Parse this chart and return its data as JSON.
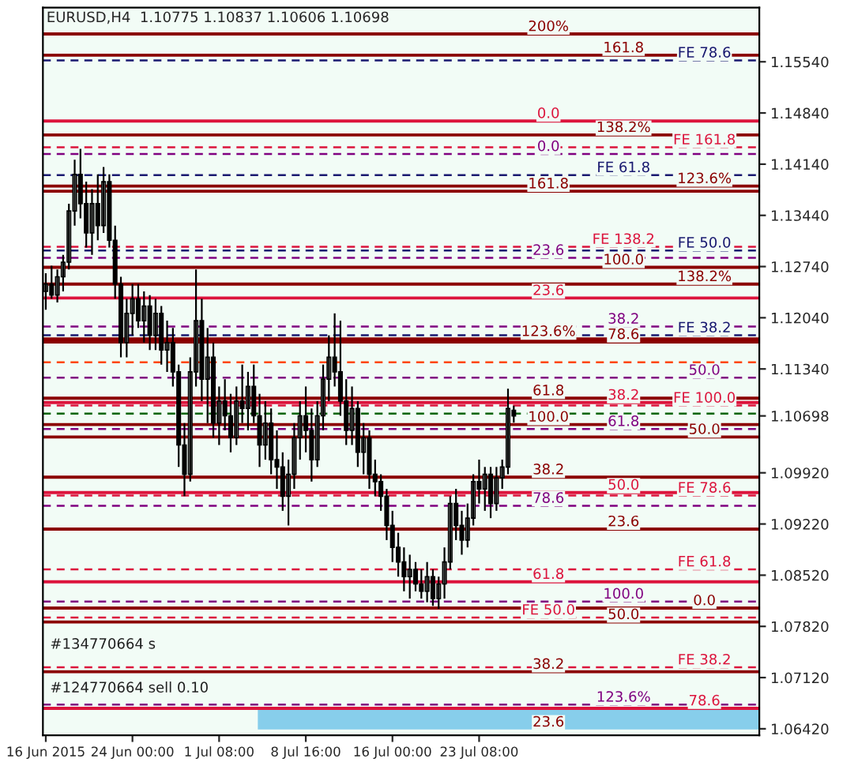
{
  "chart_data": {
    "type": "candlestick",
    "title": "EURUSD,H4  1.10775 1.10837 1.10606 1.10698",
    "color": "#000000",
    "categories": [
      "16 Jun 2015",
      null,
      null,
      null,
      null,
      null,
      null,
      null,
      null,
      null,
      null,
      null,
      null,
      null,
      null,
      "24 Jun 00:00",
      null,
      null,
      null,
      null,
      null,
      null,
      null,
      null,
      null,
      null,
      null,
      null,
      null,
      null,
      "1 Jul 08:00",
      null,
      null,
      null,
      null,
      null,
      null,
      null,
      null,
      null,
      null,
      null,
      null,
      null,
      null,
      "8 Jul 16:00",
      null,
      null,
      null,
      null,
      null,
      null,
      null,
      null,
      null,
      null,
      null,
      null,
      null,
      null,
      "16 Jul 00:00",
      null,
      null,
      null,
      null,
      null,
      null,
      null,
      null,
      null,
      null,
      null,
      null,
      null,
      null,
      "23 Jul 08:00",
      null,
      null,
      null,
      null,
      null,
      null,
      null,
      null,
      null,
      null,
      null,
      null,
      null,
      null,
      null,
      null,
      null,
      null,
      null,
      null,
      null,
      null,
      null,
      null,
      null,
      null,
      null,
      null,
      null,
      null,
      null,
      null,
      null,
      null,
      null,
      null,
      null,
      null,
      null,
      null,
      null,
      null,
      null,
      null,
      null,
      null,
      null,
      null
    ],
    "ohlc": [
      [
        1.124,
        1.1265,
        1.1215,
        1.125
      ],
      [
        1.125,
        1.1275,
        1.123,
        1.1235
      ],
      [
        1.1235,
        1.127,
        1.1225,
        1.126
      ],
      [
        1.126,
        1.129,
        1.124,
        1.128
      ],
      [
        1.128,
        1.136,
        1.127,
        1.135
      ],
      [
        1.135,
        1.142,
        1.133,
        1.14
      ],
      [
        1.14,
        1.1435,
        1.134,
        1.136
      ],
      [
        1.136,
        1.139,
        1.13,
        1.132
      ],
      [
        1.132,
        1.138,
        1.129,
        1.136
      ],
      [
        1.136,
        1.14,
        1.131,
        1.133
      ],
      [
        1.133,
        1.141,
        1.132,
        1.139
      ],
      [
        1.139,
        1.14,
        1.13,
        1.131
      ],
      [
        1.131,
        1.133,
        1.123,
        1.125
      ],
      [
        1.125,
        1.126,
        1.115,
        1.117
      ],
      [
        1.117,
        1.123,
        1.115,
        1.121
      ],
      [
        1.121,
        1.125,
        1.118,
        1.123
      ],
      [
        1.123,
        1.125,
        1.119,
        1.12
      ],
      [
        1.12,
        1.124,
        1.117,
        1.122
      ],
      [
        1.122,
        1.1235,
        1.116,
        1.118
      ],
      [
        1.118,
        1.123,
        1.116,
        1.121
      ],
      [
        1.121,
        1.122,
        1.114,
        1.116
      ],
      [
        1.116,
        1.12,
        1.113,
        1.117
      ],
      [
        1.117,
        1.119,
        1.111,
        1.113
      ],
      [
        1.113,
        1.114,
        1.1,
        1.103
      ],
      [
        1.103,
        1.106,
        1.096,
        1.099
      ],
      [
        1.099,
        1.115,
        1.098,
        1.113
      ],
      [
        1.113,
        1.127,
        1.111,
        1.12
      ],
      [
        1.12,
        1.123,
        1.109,
        1.112
      ],
      [
        1.112,
        1.119,
        1.106,
        1.115
      ],
      [
        1.115,
        1.117,
        1.104,
        1.106
      ],
      [
        1.106,
        1.111,
        1.103,
        1.109
      ],
      [
        1.109,
        1.112,
        1.105,
        1.107
      ],
      [
        1.107,
        1.11,
        1.102,
        1.104
      ],
      [
        1.104,
        1.111,
        1.103,
        1.109
      ],
      [
        1.109,
        1.114,
        1.106,
        1.108
      ],
      [
        1.108,
        1.113,
        1.105,
        1.111
      ],
      [
        1.111,
        1.114,
        1.106,
        1.107
      ],
      [
        1.107,
        1.11,
        1.1,
        1.103
      ],
      [
        1.103,
        1.109,
        1.101,
        1.106
      ],
      [
        1.106,
        1.108,
        1.099,
        1.101
      ],
      [
        1.101,
        1.105,
        1.097,
        1.1
      ],
      [
        1.1,
        1.102,
        1.094,
        1.096
      ],
      [
        1.096,
        1.101,
        1.092,
        1.099
      ],
      [
        1.099,
        1.106,
        1.097,
        1.104
      ],
      [
        1.104,
        1.109,
        1.101,
        1.107
      ],
      [
        1.107,
        1.111,
        1.102,
        1.105
      ],
      [
        1.105,
        1.108,
        1.098,
        1.101
      ],
      [
        1.101,
        1.109,
        1.1,
        1.107
      ],
      [
        1.107,
        1.114,
        1.105,
        1.112
      ],
      [
        1.112,
        1.118,
        1.109,
        1.115
      ],
      [
        1.115,
        1.121,
        1.111,
        1.113
      ],
      [
        1.113,
        1.12,
        1.107,
        1.109
      ],
      [
        1.109,
        1.112,
        1.103,
        1.105
      ],
      [
        1.105,
        1.111,
        1.103,
        1.108
      ],
      [
        1.108,
        1.109,
        1.1,
        1.102
      ],
      [
        1.102,
        1.106,
        1.099,
        1.104
      ],
      [
        1.104,
        1.105,
        1.097,
        1.099
      ],
      [
        1.099,
        1.101,
        1.096,
        1.098
      ],
      [
        1.098,
        1.099,
        1.094,
        1.096
      ],
      [
        1.096,
        1.097,
        1.09,
        1.092
      ],
      [
        1.092,
        1.094,
        1.087,
        1.089
      ],
      [
        1.089,
        1.091,
        1.085,
        1.087
      ],
      [
        1.087,
        1.089,
        1.083,
        1.085
      ],
      [
        1.085,
        1.088,
        1.082,
        1.086
      ],
      [
        1.086,
        1.087,
        1.083,
        1.084
      ],
      [
        1.084,
        1.086,
        1.082,
        1.083
      ],
      [
        1.083,
        1.087,
        1.0815,
        1.085
      ],
      [
        1.085,
        1.086,
        1.081,
        1.082
      ],
      [
        1.082,
        1.085,
        1.0806,
        1.084
      ],
      [
        1.084,
        1.089,
        1.082,
        1.087
      ],
      [
        1.087,
        1.096,
        1.086,
        1.095
      ],
      [
        1.095,
        1.097,
        1.09,
        1.092
      ],
      [
        1.092,
        1.094,
        1.088,
        1.09
      ],
      [
        1.09,
        1.095,
        1.089,
        1.093
      ],
      [
        1.093,
        1.099,
        1.092,
        1.098
      ],
      [
        1.098,
        1.101,
        1.095,
        1.097
      ],
      [
        1.097,
        1.1,
        1.094,
        1.099
      ],
      [
        1.099,
        1.1,
        1.093,
        1.095
      ],
      [
        1.095,
        1.1,
        1.094,
        1.0985
      ],
      [
        1.0985,
        1.101,
        1.097,
        1.1
      ],
      [
        1.1,
        1.1107,
        1.099,
        1.108
      ],
      [
        1.10775,
        1.10837,
        1.10606,
        1.10698
      ],
      null,
      null,
      null,
      null,
      null,
      null,
      null,
      null,
      null,
      null,
      null,
      null,
      null,
      null,
      null,
      null,
      null,
      null,
      null,
      null,
      null,
      null,
      null,
      null,
      null,
      null,
      null,
      null,
      null,
      null,
      null,
      null,
      null,
      null,
      null,
      null,
      null,
      null,
      null,
      null,
      null,
      null
    ],
    "ylim": [
      1.0633,
      1.1628
    ],
    "yticks": [
      {
        "value": 1.1554,
        "label": "1.15540"
      },
      {
        "value": 1.1484,
        "label": "1.14840"
      },
      {
        "value": 1.1414,
        "label": "1.14140"
      },
      {
        "value": 1.1344,
        "label": "1.13440"
      },
      {
        "value": 1.1274,
        "label": "1.12740"
      },
      {
        "value": 1.1204,
        "label": "1.12040"
      },
      {
        "value": 1.1134,
        "label": "1.11340"
      },
      {
        "value": 1.10698,
        "label": "1.10698"
      },
      {
        "value": 1.0992,
        "label": "1.09920"
      },
      {
        "value": 1.0922,
        "label": "1.09220"
      },
      {
        "value": 1.0852,
        "label": "1.08520"
      },
      {
        "value": 1.0782,
        "label": "1.07820"
      },
      {
        "value": 1.0712,
        "label": "1.07120"
      },
      {
        "value": 1.0642,
        "label": "1.06420"
      }
    ],
    "grid": false,
    "ref_lines": [
      {
        "axis": "y",
        "value": 1.1592,
        "color": "#8b0000",
        "line_style": "solid"
      },
      {
        "axis": "y",
        "value": 1.1563,
        "color": "#8b0000",
        "line_style": "solid"
      },
      {
        "axis": "y",
        "value": 1.1556,
        "color": "#191970",
        "line_style": "dashed"
      },
      {
        "axis": "y",
        "value": 1.1473,
        "color": "#dc143c",
        "line_style": "solid"
      },
      {
        "axis": "y",
        "value": 1.1454,
        "color": "#8b0000",
        "line_style": "solid"
      },
      {
        "axis": "y",
        "value": 1.1437,
        "color": "#dc143c",
        "line_style": "dashed"
      },
      {
        "axis": "y",
        "value": 1.1428,
        "color": "#800080",
        "line_style": "dashed"
      },
      {
        "axis": "y",
        "value": 1.1399,
        "color": "#191970",
        "line_style": "dashed"
      },
      {
        "axis": "y",
        "value": 1.1384,
        "color": "#8b0000",
        "line_style": "solid"
      },
      {
        "axis": "y",
        "value": 1.1377,
        "color": "#8b0000",
        "line_style": "solid"
      },
      {
        "axis": "y",
        "value": 1.1301,
        "color": "#dc143c",
        "line_style": "dashed"
      },
      {
        "axis": "y",
        "value": 1.1296,
        "color": "#191970",
        "line_style": "dashed"
      },
      {
        "axis": "y",
        "value": 1.1286,
        "color": "#800080",
        "line_style": "dashed"
      },
      {
        "axis": "y",
        "value": 1.1273,
        "color": "#8b0000",
        "line_style": "solid"
      },
      {
        "axis": "y",
        "value": 1.125,
        "color": "#8b0000",
        "line_style": "solid"
      },
      {
        "axis": "y",
        "value": 1.1231,
        "color": "#dc143c",
        "line_style": "solid"
      },
      {
        "axis": "y",
        "value": 1.1192,
        "color": "#800080",
        "line_style": "dashed"
      },
      {
        "axis": "y",
        "value": 1.118,
        "color": "#191970",
        "line_style": "dashed"
      },
      {
        "axis": "y",
        "value": 1.1175,
        "color": "#8b0000",
        "line_style": "solid"
      },
      {
        "axis": "y",
        "value": 1.1171,
        "color": "#8b0000",
        "line_style": "solid"
      },
      {
        "axis": "y",
        "value": 1.1143,
        "color": "#ff4500",
        "line_style": "dashed"
      },
      {
        "axis": "y",
        "value": 1.1122,
        "color": "#800080",
        "line_style": "dashed"
      },
      {
        "axis": "y",
        "value": 1.1094,
        "color": "#8b0000",
        "line_style": "solid"
      },
      {
        "axis": "y",
        "value": 1.1088,
        "color": "#dc143c",
        "line_style": "solid"
      },
      {
        "axis": "y",
        "value": 1.1084,
        "color": "#dc143c",
        "line_style": "dashed"
      },
      {
        "axis": "y",
        "value": 1.1073,
        "color": "#006400",
        "line_style": "dashed"
      },
      {
        "axis": "y",
        "value": 1.1058,
        "color": "#8b0000",
        "line_style": "solid"
      },
      {
        "axis": "y",
        "value": 1.1052,
        "color": "#800080",
        "line_style": "dashed"
      },
      {
        "axis": "y",
        "value": 1.1041,
        "color": "#8b0000",
        "line_style": "solid"
      },
      {
        "axis": "y",
        "value": 1.0986,
        "color": "#8b0000",
        "line_style": "solid"
      },
      {
        "axis": "y",
        "value": 1.0965,
        "color": "#dc143c",
        "line_style": "solid"
      },
      {
        "axis": "y",
        "value": 1.0961,
        "color": "#dc143c",
        "line_style": "dashed"
      },
      {
        "axis": "y",
        "value": 1.0947,
        "color": "#800080",
        "line_style": "dashed"
      },
      {
        "axis": "y",
        "value": 1.0915,
        "color": "#8b0000",
        "line_style": "solid"
      },
      {
        "axis": "y",
        "value": 1.086,
        "color": "#dc143c",
        "line_style": "dashed"
      },
      {
        "axis": "y",
        "value": 1.0843,
        "color": "#dc143c",
        "line_style": "solid"
      },
      {
        "axis": "y",
        "value": 1.0816,
        "color": "#800080",
        "line_style": "dashed"
      },
      {
        "axis": "y",
        "value": 1.0807,
        "color": "#8b0000",
        "line_style": "solid"
      },
      {
        "axis": "y",
        "value": 1.0794,
        "color": "#dc143c",
        "line_style": "dashed"
      },
      {
        "axis": "y",
        "value": 1.0788,
        "color": "#8b0000",
        "line_style": "solid"
      },
      {
        "axis": "y",
        "value": 1.0726,
        "color": "#dc143c",
        "line_style": "dashed"
      },
      {
        "axis": "y",
        "value": 1.072,
        "color": "#8b0000",
        "line_style": "solid"
      },
      {
        "axis": "y",
        "value": 1.0675,
        "color": "#800080",
        "line_style": "dashed"
      },
      {
        "axis": "y",
        "value": 1.067,
        "color": "#dc143c",
        "line_style": "solid"
      }
    ],
    "bands": [
      {
        "axis": "y",
        "from": 1.0641,
        "to": 1.0668,
        "color": "#87ceeb"
      }
    ],
    "annotations": [
      {
        "text": "200%",
        "y": 1.1592
      },
      {
        "text": "161.8",
        "y": 1.1563
      },
      {
        "text": "FE 78.6",
        "y": 1.1556
      },
      {
        "text": "0.0",
        "y": 1.1473
      },
      {
        "text": "138.2%",
        "y": 1.1454
      },
      {
        "text": "FE 161.8",
        "y": 1.1437
      },
      {
        "text": "0.0",
        "y": 1.1428
      },
      {
        "text": "FE 61.8",
        "y": 1.1399
      },
      {
        "text": "123.6%",
        "y": 1.1384
      },
      {
        "text": "161.8",
        "y": 1.1377
      },
      {
        "text": "FE 138.2",
        "y": 1.1301
      },
      {
        "text": "FE 50.0",
        "y": 1.1296
      },
      {
        "text": "23.6",
        "y": 1.1286
      },
      {
        "text": "100.0",
        "y": 1.1273
      },
      {
        "text": "138.2%",
        "y": 1.125
      },
      {
        "text": "23.6",
        "y": 1.1231
      },
      {
        "text": "38.2",
        "y": 1.1192
      },
      {
        "text": "FE 38.2",
        "y": 1.118
      },
      {
        "text": "123.6%",
        "y": 1.1175
      },
      {
        "text": "78.6",
        "y": 1.1171
      },
      {
        "text": "50.0",
        "y": 1.1122
      },
      {
        "text": "61.8",
        "y": 1.1094
      },
      {
        "text": "38.2",
        "y": 1.1088
      },
      {
        "text": "FE 100.0",
        "y": 1.1084
      },
      {
        "text": "100.0",
        "y": 1.1058
      },
      {
        "text": "61.8",
        "y": 1.1052
      },
      {
        "text": "50.0",
        "y": 1.1041
      },
      {
        "text": "38.2",
        "y": 1.0986
      },
      {
        "text": "50.0",
        "y": 1.0965
      },
      {
        "text": "FE 78.6",
        "y": 1.0961
      },
      {
        "text": "78.6",
        "y": 1.0947
      },
      {
        "text": "23.6",
        "y": 1.0915
      },
      {
        "text": "FE 61.8",
        "y": 1.086
      },
      {
        "text": "61.8",
        "y": 1.0843
      },
      {
        "text": "100.0",
        "y": 1.0816
      },
      {
        "text": "0.0",
        "y": 1.0807
      },
      {
        "text": "FE 50.0",
        "y": 1.0794
      },
      {
        "text": "50.0",
        "y": 1.0788
      },
      {
        "text": "FE 38.2",
        "y": 1.0726
      },
      {
        "text": "38.2",
        "y": 1.072
      },
      {
        "text": "123.6%",
        "y": 1.0675
      },
      {
        "text": "78.6",
        "y": 1.067
      },
      {
        "text": "23.6",
        "y": 1.0641
      },
      "#134770664 s",
      "#124770664 sell 0.10"
    ]
  }
}
